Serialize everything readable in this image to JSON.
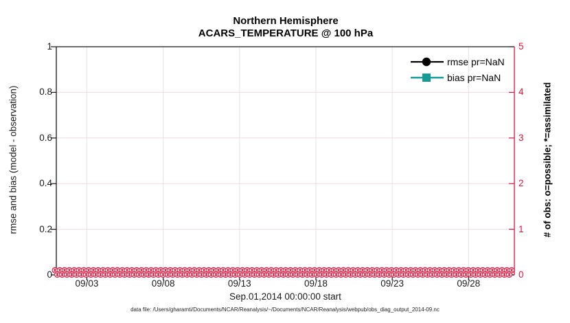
{
  "figure": {
    "title_line1": "Northern Hemisphere",
    "title_line2": "ACARS_TEMPERATURE @ 100 hPa",
    "caption": "data file: /Users/gharamti/Documents/NCAR/Reanalysis/~/Documents/NCAR/Reanalysis/webpub/obs_diag_output_2014-09.nc"
  },
  "axes": {
    "left": {
      "label": "rmse and bias (model - observation)",
      "ticks": [
        "0",
        "0.2",
        "0.4",
        "0.6",
        "0.8",
        "1"
      ],
      "range": [
        0,
        1
      ]
    },
    "right": {
      "label": "# of obs: o=possible; *=assimilated",
      "ticks": [
        "0",
        "1",
        "2",
        "3",
        "4",
        "5"
      ],
      "range": [
        0,
        5
      ]
    },
    "x": {
      "label": "Sep.01,2014 00:00:00 start",
      "ticks": [
        "09/03",
        "09/08",
        "09/13",
        "09/18",
        "09/23",
        "09/28"
      ],
      "tick_days": [
        2,
        7,
        12,
        17,
        22,
        27
      ],
      "range_days": [
        0,
        30
      ]
    }
  },
  "legend": [
    {
      "label": "rmse pr=NaN",
      "marker": "filled-circle",
      "color": "#000000"
    },
    {
      "label": "bias pr=NaN",
      "marker": "filled-square",
      "color": "#149b96"
    }
  ],
  "colors": {
    "obs_axis": "#dc143c",
    "bias_teal": "#149b96",
    "rmse_black": "#000000",
    "grid_vertical": "#e3e3e3",
    "grid_horizontal": "#f6d7e0",
    "axis_black": "#151515",
    "marker_fill": "#ffffff"
  },
  "chart_data": {
    "type": "line",
    "title": "Northern Hemisphere",
    "subtitle": "ACARS_TEMPERATURE @ 100 hPa",
    "xlabel": "Sep.01,2014 00:00:00 start",
    "ylabel_left": "rmse and bias (model - observation)",
    "ylabel_right": "# of obs: o=possible; *=assimilated",
    "x_tick_labels": [
      "09/03",
      "09/08",
      "09/13",
      "09/18",
      "09/23",
      "09/28"
    ],
    "x_range": "Sep 01 2014 to Oct 01 2014",
    "ylim_left": [
      0,
      1
    ],
    "ylim_right": [
      0,
      5
    ],
    "grid": true,
    "legend_position": "top-right-inside",
    "series": [
      {
        "name": "rmse pr=NaN",
        "axis": "left",
        "values": "NaN - no curve plotted"
      },
      {
        "name": "bias pr=NaN",
        "axis": "left",
        "values": "NaN - no curve plotted"
      },
      {
        "name": "# of obs possible (o markers)",
        "axis": "right",
        "constant_value": 0,
        "note": "dense row of circle markers at y=0 across entire time range"
      },
      {
        "name": "# of obs assimilated (* markers)",
        "axis": "right",
        "constant_value": 0,
        "note": "dense row of asterisk markers at y=0 across entire time range"
      }
    ]
  }
}
